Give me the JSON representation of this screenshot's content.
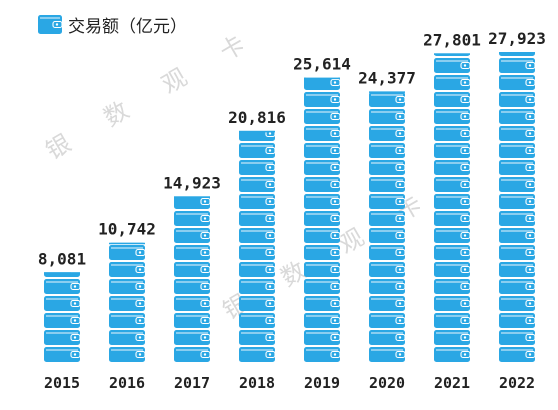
{
  "legend": {
    "label": "交易额（亿元）",
    "icon": "wallet-icon"
  },
  "watermark": {
    "chars": [
      "银",
      "数",
      "观",
      "卡"
    ]
  },
  "colors": {
    "icon_fill": "#2aa7e4",
    "icon_detail": "#ffffff",
    "text": "#222222",
    "watermark": "#d9d9d9"
  },
  "chart_data": {
    "type": "bar",
    "style": "pictograph",
    "categories": [
      "2015",
      "2016",
      "2017",
      "2018",
      "2019",
      "2020",
      "2021",
      "2022"
    ],
    "series": [
      {
        "values": [
          8081,
          10742,
          14923,
          20816,
          25614,
          24377,
          27801,
          27923
        ],
        "labels": [
          "8,081",
          "10,742",
          "14,923",
          "20,816",
          "25,614",
          "24,377",
          "27,801",
          "27,923"
        ]
      }
    ],
    "ylim": [
      0,
      27923
    ],
    "grid": false,
    "xlabel": "",
    "ylabel": ""
  }
}
